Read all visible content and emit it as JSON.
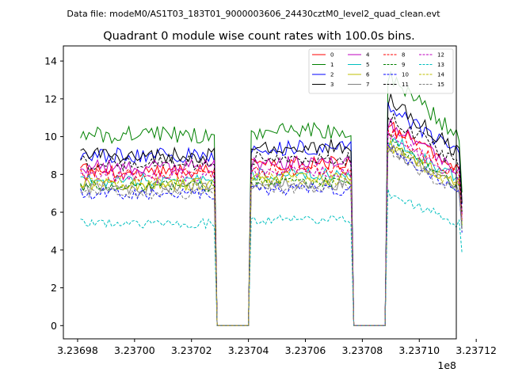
{
  "figure": {
    "suptitle": "Data file: modeM0/AS1T03_183T01_9000003606_24430cztM0_level2_quad_clean.evt"
  },
  "chart_data": {
    "type": "line",
    "title": "Quadrant 0 module wise count rates with 100.0s bins.",
    "xlabel": "",
    "ylabel": "",
    "x_offset_label": "1e8",
    "xlim": [
      323697500,
      323711300
    ],
    "ylim": [
      -0.7,
      14.8
    ],
    "x_ticks": [
      323698000,
      323700000,
      323702000,
      323704000,
      323706000,
      323708000,
      323710000,
      323712000
    ],
    "x_tick_labels": [
      "3.23698",
      "3.23700",
      "3.23702",
      "3.23704",
      "3.23706",
      "3.23708",
      "3.23710",
      "3.23712"
    ],
    "y_ticks": [
      0,
      2,
      4,
      6,
      8,
      10,
      12,
      14
    ],
    "y_tick_labels": [
      "0",
      "2",
      "4",
      "6",
      "8",
      "10",
      "12",
      "14"
    ],
    "bin_seconds": 100,
    "x_start": 323698100,
    "n_bins": 135,
    "gap_bins": [
      [
        48,
        60
      ],
      [
        96,
        108
      ]
    ],
    "segment_starts": [
      0,
      60,
      108
    ],
    "legend_position": "upper right",
    "series": [
      {
        "name": "0",
        "color": "#ff0000",
        "dash": "solid",
        "base": [
          8.2,
          8.6,
          10.6
        ]
      },
      {
        "name": "1",
        "color": "#008000",
        "dash": "solid",
        "base": [
          10.1,
          10.3,
          13.3
        ]
      },
      {
        "name": "2",
        "color": "#0000ff",
        "dash": "solid",
        "base": [
          9.0,
          9.4,
          11.6
        ]
      },
      {
        "name": "3",
        "color": "#000000",
        "dash": "solid",
        "base": [
          9.0,
          9.5,
          12.0
        ]
      },
      {
        "name": "4",
        "color": "#bf00bf",
        "dash": "solid",
        "base": [
          8.4,
          8.6,
          10.7
        ]
      },
      {
        "name": "5",
        "color": "#00bfbf",
        "dash": "solid",
        "base": [
          7.7,
          8.0,
          10.0
        ]
      },
      {
        "name": "6",
        "color": "#bfbf00",
        "dash": "solid",
        "base": [
          7.5,
          7.8,
          9.6
        ]
      },
      {
        "name": "7",
        "color": "#808080",
        "dash": "solid",
        "base": [
          7.3,
          7.5,
          9.4
        ]
      },
      {
        "name": "8",
        "color": "#ff0000",
        "dash": "dashed",
        "base": [
          8.0,
          8.2,
          10.3
        ]
      },
      {
        "name": "9",
        "color": "#008000",
        "dash": "dashed",
        "base": [
          7.4,
          7.6,
          9.9
        ]
      },
      {
        "name": "10",
        "color": "#0000ff",
        "dash": "dashed",
        "base": [
          7.0,
          7.2,
          9.6
        ]
      },
      {
        "name": "11",
        "color": "#000000",
        "dash": "dashed",
        "base": [
          8.6,
          8.8,
          11.2
        ]
      },
      {
        "name": "12",
        "color": "#bf00bf",
        "dash": "dashed",
        "base": [
          7.9,
          8.1,
          10.2
        ]
      },
      {
        "name": "13",
        "color": "#00bfbf",
        "dash": "dashed",
        "base": [
          5.4,
          5.6,
          7.0
        ]
      },
      {
        "name": "14",
        "color": "#bfbf00",
        "dash": "dashed",
        "base": [
          7.5,
          7.7,
          9.5
        ]
      },
      {
        "name": "15",
        "color": "#808080",
        "dash": "dashed",
        "base": [
          7.0,
          7.3,
          9.2
        ]
      }
    ]
  }
}
